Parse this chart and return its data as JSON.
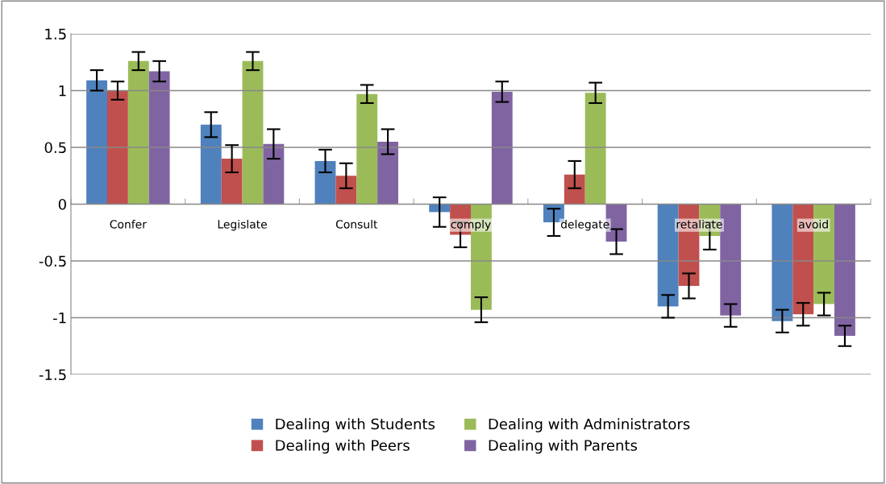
{
  "chart_data": {
    "type": "bar",
    "categories": [
      "Confer",
      "Legislate",
      "Consult",
      "comply",
      "delegate",
      "retaliate",
      "avoid"
    ],
    "series": [
      {
        "name": "Dealing with Students",
        "color": "#4f81bd",
        "values": [
          1.09,
          0.7,
          0.38,
          -0.07,
          -0.16,
          -0.9,
          -1.03
        ],
        "errors": [
          0.09,
          0.11,
          0.1,
          0.13,
          0.12,
          0.1,
          0.1
        ]
      },
      {
        "name": "Dealing with Peers",
        "color": "#c0504d",
        "values": [
          1.0,
          0.4,
          0.25,
          -0.27,
          0.26,
          -0.72,
          -0.97
        ],
        "errors": [
          0.08,
          0.12,
          0.11,
          0.11,
          0.12,
          0.11,
          0.1
        ]
      },
      {
        "name": "Dealing with Administrators",
        "color": "#9bbb59",
        "values": [
          1.26,
          1.26,
          0.97,
          -0.93,
          0.98,
          -0.28,
          -0.88
        ],
        "errors": [
          0.08,
          0.08,
          0.08,
          0.11,
          0.09,
          0.12,
          0.1
        ]
      },
      {
        "name": "Dealing with Parents",
        "color": "#8064a2",
        "values": [
          1.17,
          0.53,
          0.55,
          0.99,
          -0.33,
          -0.98,
          -1.16
        ],
        "errors": [
          0.09,
          0.13,
          0.11,
          0.09,
          0.11,
          0.1,
          0.09
        ]
      }
    ],
    "ylim": [
      -1.5,
      1.5
    ],
    "yticks": [
      -1.5,
      -1,
      -0.5,
      0,
      0.5,
      1,
      1.5
    ],
    "grid": "y",
    "legend": "bottom"
  }
}
